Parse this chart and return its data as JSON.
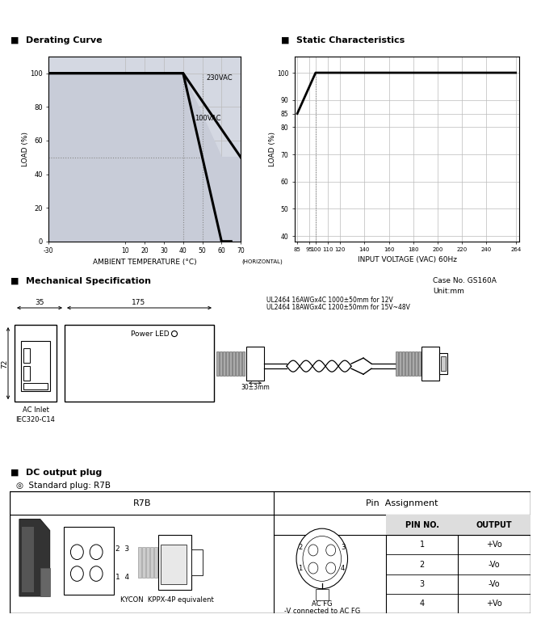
{
  "bg_color": "#ffffff",
  "grid_color": "#cccccc",
  "derating_title": "Derating Curve",
  "static_title": "Static Characteristics",
  "mech_title": "Mechanical Specification",
  "dc_title": "DC output plug",
  "case_no": "Case No. GS160A",
  "unit": "Unit:mm",
  "amb_xlabel": "AMBIENT TEMPERATURE (°C)",
  "inp_xlabel": "INPUT VOLTAGE (VAC) 60Hz",
  "load_ylabel": "LOAD (%)",
  "derating_xticks": [
    -30,
    10,
    20,
    30,
    40,
    50,
    60,
    70
  ],
  "derating_yticks": [
    0,
    20,
    40,
    60,
    80,
    100
  ],
  "static_xticks": [
    85,
    95,
    100,
    110,
    120,
    140,
    160,
    180,
    200,
    220,
    240,
    264
  ],
  "static_yticks": [
    40,
    50,
    60,
    70,
    80,
    85,
    90,
    100
  ],
  "horizontal_label": "(HORIZONTAL)",
  "label_230vac": "230VAC",
  "label_100vac": "100VAC",
  "std_plug": "◎  Standard plug: R7B",
  "r7b_label": "R7B",
  "pin_assign_label": "Pin  Assignment",
  "kycon_label": "KYCON  KPPX-4P equivalent",
  "ac_fg_label": "AC FG",
  "v_connected_label": "-V connected to AC FG",
  "pin_header": [
    "PIN NO.",
    "OUTPUT"
  ],
  "pin_data": [
    [
      "1",
      "+Vo"
    ],
    [
      "2",
      "-Vo"
    ],
    [
      "3",
      "-Vo"
    ],
    [
      "4",
      "+Vo"
    ]
  ],
  "dim_35": "35",
  "dim_175": "175",
  "dim_72": "72",
  "ul_text1": "UL2464 16AWGx4C 1000±50mm for 12V",
  "ul_text2": "UL2464 18AWGx4C 1200±50mm for 15V~48V",
  "dim_30": "30±3mm",
  "power_led": "Power LED",
  "ac_inlet": "AC Inlet\nIEC320-C14"
}
